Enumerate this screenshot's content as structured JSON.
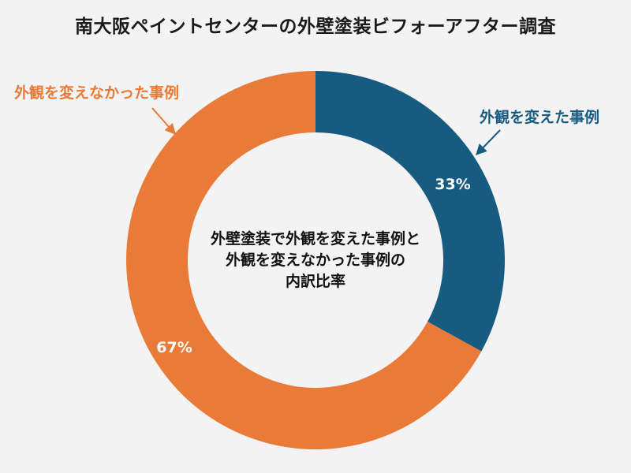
{
  "chart_data": {
    "type": "pie",
    "title": "南大阪ペイントセンターの外壁塗装ビフォーアフター調査",
    "center_text": [
      "外壁塗装で外観を変えた事例と",
      "外観を変えなかった事例の",
      "内訳比率"
    ],
    "slices": [
      {
        "label": "外観を変えた事例",
        "value": 33,
        "display": "33%",
        "color": "#175b80"
      },
      {
        "label": "外観を変えなかった事例",
        "value": 67,
        "display": "67%",
        "color": "#e97a37"
      }
    ]
  }
}
